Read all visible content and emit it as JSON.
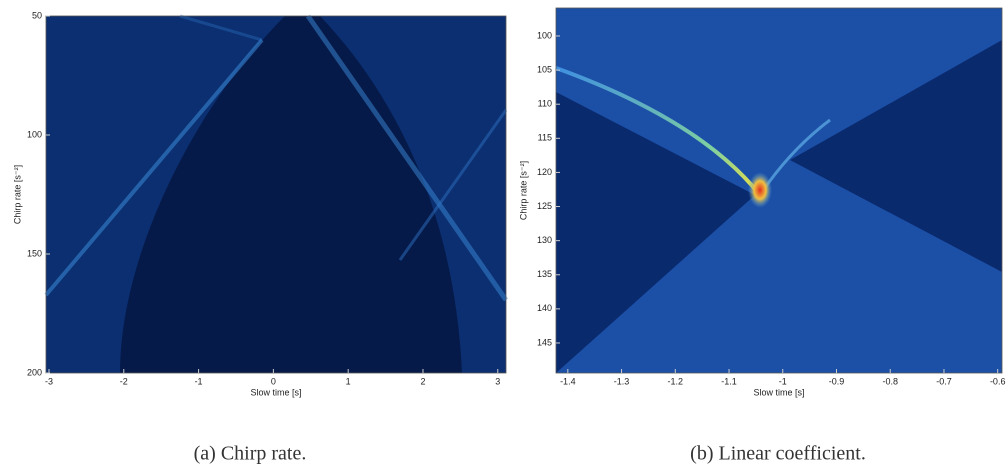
{
  "figures": [
    {
      "caption": "(a) Chirp rate.",
      "xlabel": "Slow time [s]",
      "ylabel": "Chirp rate [s⁻²]",
      "xlim": [
        -3.04,
        3.11
      ],
      "ylim": [
        50,
        200
      ],
      "y_reversed": true,
      "xticks": [
        -3,
        -2,
        -1,
        0,
        1,
        2,
        3
      ],
      "yticks": [
        50,
        100,
        150,
        200
      ]
    },
    {
      "caption": "(b) Linear coefficient.",
      "xlabel": "Slow time [s]",
      "ylabel": "Chirp rate [s⁻²]",
      "xlim": [
        -1.422,
        -0.592
      ],
      "ylim": [
        95.9,
        149.4
      ],
      "y_reversed": true,
      "xticks": [
        -1.4,
        -1.3,
        -1.2,
        -1.1,
        -1,
        -0.9,
        -0.8,
        -0.7,
        -0.6
      ],
      "yticks": [
        100,
        105,
        110,
        115,
        120,
        125,
        130,
        135,
        140,
        145
      ]
    }
  ]
}
